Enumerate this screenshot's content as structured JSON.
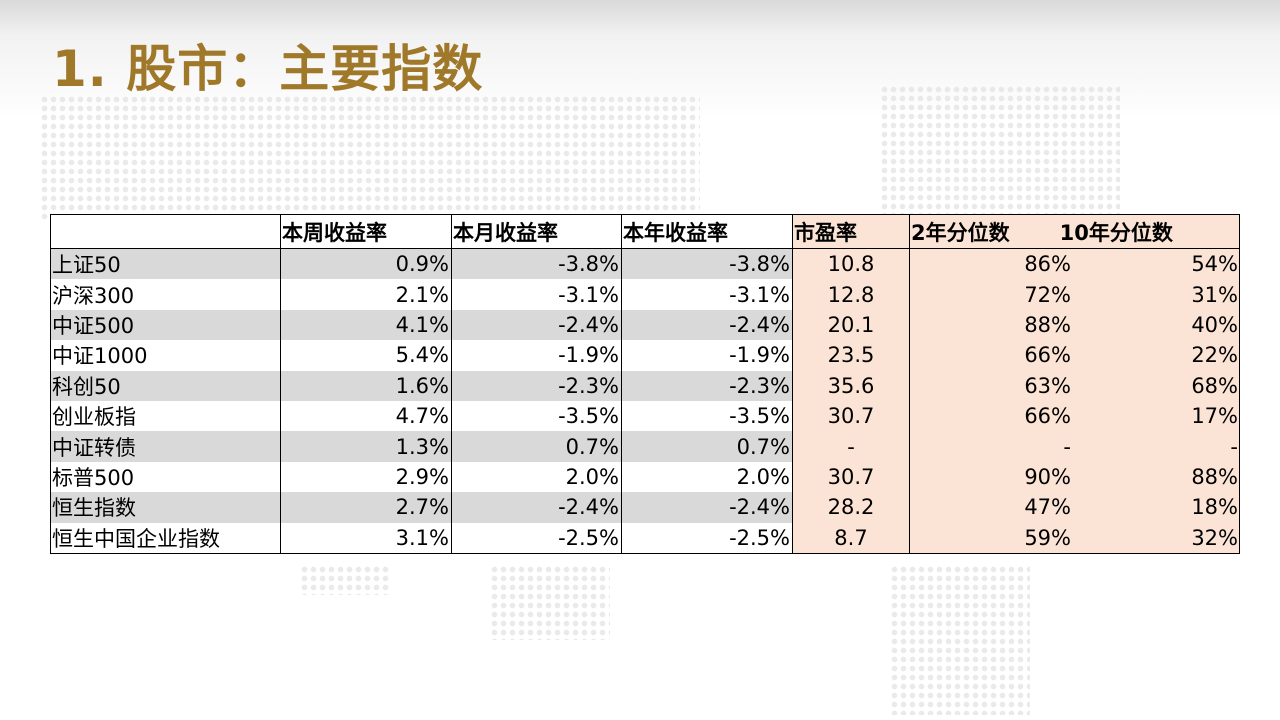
{
  "title": "1. 股市：主要指数",
  "colors": {
    "title": "#a0782a",
    "row_shade": "#d9d9d9",
    "pe_block": "#fbe4d5"
  },
  "table": {
    "headers": {
      "name": "",
      "week": "本周收益率",
      "month": "本月收益率",
      "year": "本年收益率",
      "pe": "市盈率",
      "pct2": "2年分位数",
      "pct10": "10年分位数"
    },
    "rows": [
      {
        "name": "上证50",
        "week": "0.9%",
        "month": "-3.8%",
        "year": "-3.8%",
        "pe": "10.8",
        "pct2": "86%",
        "pct10": "54%"
      },
      {
        "name": "沪深300",
        "week": "2.1%",
        "month": "-3.1%",
        "year": "-3.1%",
        "pe": "12.8",
        "pct2": "72%",
        "pct10": "31%"
      },
      {
        "name": "中证500",
        "week": "4.1%",
        "month": "-2.4%",
        "year": "-2.4%",
        "pe": "20.1",
        "pct2": "88%",
        "pct10": "40%"
      },
      {
        "name": "中证1000",
        "week": "5.4%",
        "month": "-1.9%",
        "year": "-1.9%",
        "pe": "23.5",
        "pct2": "66%",
        "pct10": "22%"
      },
      {
        "name": "科创50",
        "week": "1.6%",
        "month": "-2.3%",
        "year": "-2.3%",
        "pe": "35.6",
        "pct2": "63%",
        "pct10": "68%"
      },
      {
        "name": "创业板指",
        "week": "4.7%",
        "month": "-3.5%",
        "year": "-3.5%",
        "pe": "30.7",
        "pct2": "66%",
        "pct10": "17%"
      },
      {
        "name": "中证转债",
        "week": "1.3%",
        "month": "0.7%",
        "year": "0.7%",
        "pe": "-",
        "pct2": "-",
        "pct10": "-"
      },
      {
        "name": "标普500",
        "week": "2.9%",
        "month": "2.0%",
        "year": "2.0%",
        "pe": "30.7",
        "pct2": "90%",
        "pct10": "88%"
      },
      {
        "name": "恒生指数",
        "week": "2.7%",
        "month": "-2.4%",
        "year": "-2.4%",
        "pe": "28.2",
        "pct2": "47%",
        "pct10": "18%"
      },
      {
        "name": "恒生中国企业指数",
        "week": "3.1%",
        "month": "-2.5%",
        "year": "-2.5%",
        "pe": "8.7",
        "pct2": "59%",
        "pct10": "32%"
      }
    ]
  }
}
